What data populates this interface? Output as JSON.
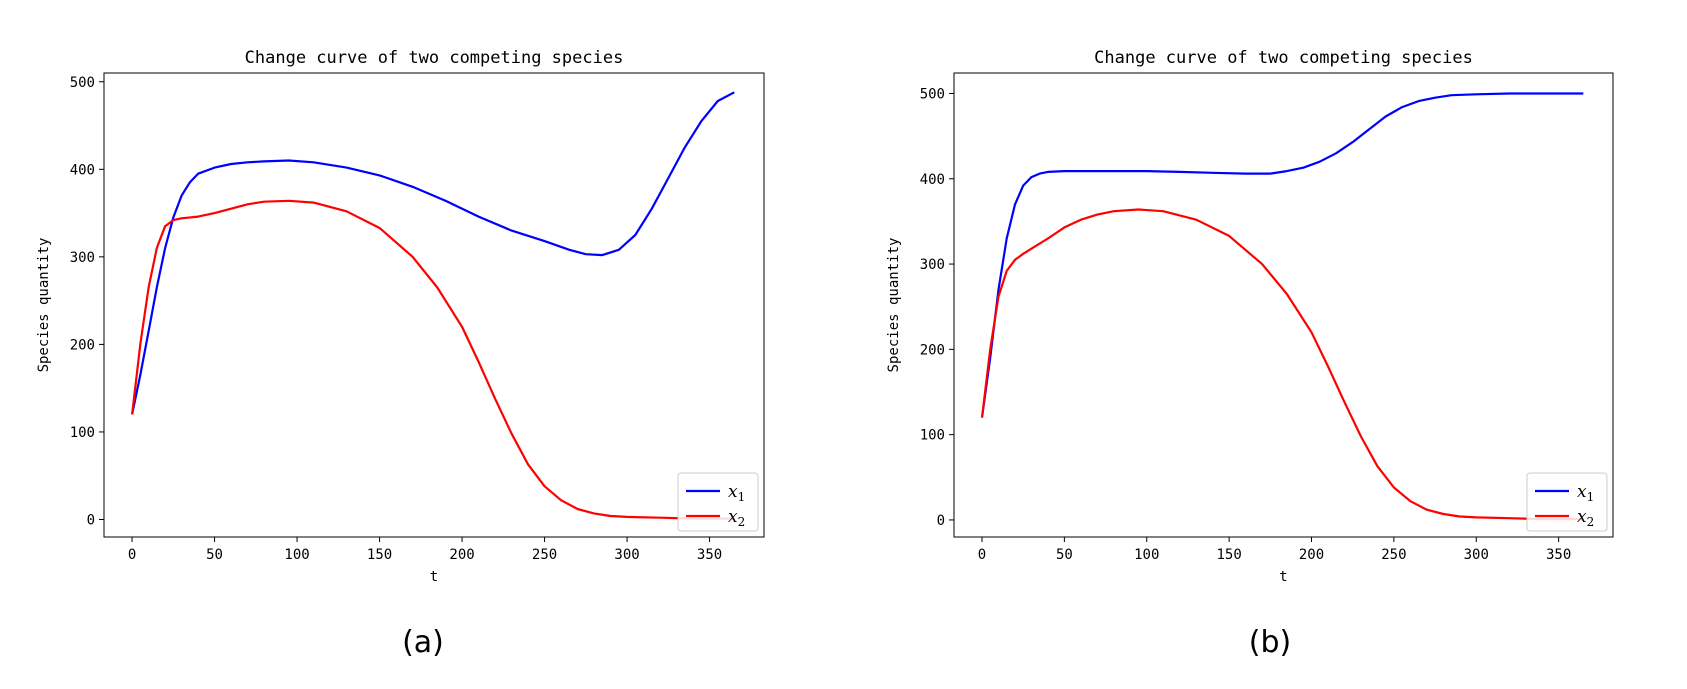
{
  "chart_data": [
    {
      "type": "line",
      "panel_label": "(a)",
      "title": "Change curve of two competing species",
      "xlabel": "t",
      "ylabel": "Species quantity",
      "xlim": [
        -17,
        383
      ],
      "ylim": [
        -20,
        510
      ],
      "xticks": [
        0,
        50,
        100,
        150,
        200,
        250,
        300,
        350
      ],
      "yticks": [
        0,
        100,
        200,
        300,
        400,
        500
      ],
      "legend": "lower-right",
      "grid": false,
      "series": [
        {
          "name": "x",
          "sub": "1",
          "color": "#0000ff",
          "x": [
            0,
            5,
            10,
            15,
            20,
            25,
            30,
            35,
            40,
            50,
            60,
            70,
            80,
            95,
            110,
            130,
            150,
            170,
            190,
            210,
            230,
            250,
            265,
            275,
            285,
            295,
            305,
            315,
            325,
            335,
            345,
            355,
            365
          ],
          "y": [
            120,
            165,
            215,
            265,
            310,
            345,
            370,
            385,
            395,
            402,
            406,
            408,
            409,
            410,
            408,
            402,
            393,
            380,
            364,
            346,
            330,
            318,
            308,
            303,
            302,
            308,
            325,
            355,
            390,
            425,
            455,
            478,
            488
          ]
        },
        {
          "name": "x",
          "sub": "2",
          "color": "#ff0000",
          "x": [
            0,
            5,
            10,
            15,
            20,
            25,
            30,
            40,
            50,
            60,
            70,
            80,
            95,
            110,
            130,
            150,
            170,
            185,
            200,
            210,
            220,
            230,
            240,
            250,
            260,
            270,
            280,
            290,
            300,
            320,
            340,
            365
          ],
          "y": [
            120,
            200,
            265,
            310,
            335,
            342,
            344,
            346,
            350,
            355,
            360,
            363,
            364,
            362,
            352,
            333,
            300,
            265,
            220,
            180,
            138,
            98,
            63,
            38,
            22,
            12,
            7,
            4,
            3,
            2,
            1,
            1
          ]
        }
      ]
    },
    {
      "type": "line",
      "panel_label": "(b)",
      "title": "Change curve of two competing species",
      "xlabel": "t",
      "ylabel": "Species quantity",
      "xlim": [
        -17,
        383
      ],
      "ylim": [
        -20,
        524
      ],
      "xticks": [
        0,
        50,
        100,
        150,
        200,
        250,
        300,
        350
      ],
      "yticks": [
        0,
        100,
        200,
        300,
        400,
        500
      ],
      "legend": "lower-right",
      "grid": false,
      "series": [
        {
          "name": "x",
          "sub": "1",
          "color": "#0000ff",
          "x": [
            0,
            5,
            10,
            15,
            20,
            25,
            30,
            35,
            40,
            50,
            60,
            80,
            100,
            120,
            140,
            160,
            175,
            185,
            195,
            205,
            215,
            225,
            235,
            245,
            255,
            265,
            275,
            285,
            300,
            320,
            340,
            365
          ],
          "y": [
            120,
            190,
            270,
            330,
            370,
            392,
            402,
            406,
            408,
            409,
            409,
            409,
            409,
            408,
            407,
            406,
            406,
            409,
            413,
            420,
            430,
            443,
            458,
            473,
            484,
            491,
            495,
            498,
            499,
            500,
            500,
            500
          ]
        },
        {
          "name": "x",
          "sub": "2",
          "color": "#ff0000",
          "x": [
            0,
            5,
            10,
            15,
            20,
            25,
            30,
            40,
            50,
            60,
            70,
            80,
            95,
            110,
            130,
            150,
            170,
            185,
            200,
            210,
            220,
            230,
            240,
            250,
            260,
            270,
            280,
            290,
            300,
            320,
            340,
            365
          ],
          "y": [
            120,
            200,
            262,
            292,
            305,
            312,
            318,
            330,
            343,
            352,
            358,
            362,
            364,
            362,
            352,
            333,
            300,
            265,
            220,
            180,
            138,
            98,
            63,
            38,
            22,
            12,
            7,
            4,
            3,
            2,
            1,
            1
          ]
        }
      ]
    }
  ]
}
